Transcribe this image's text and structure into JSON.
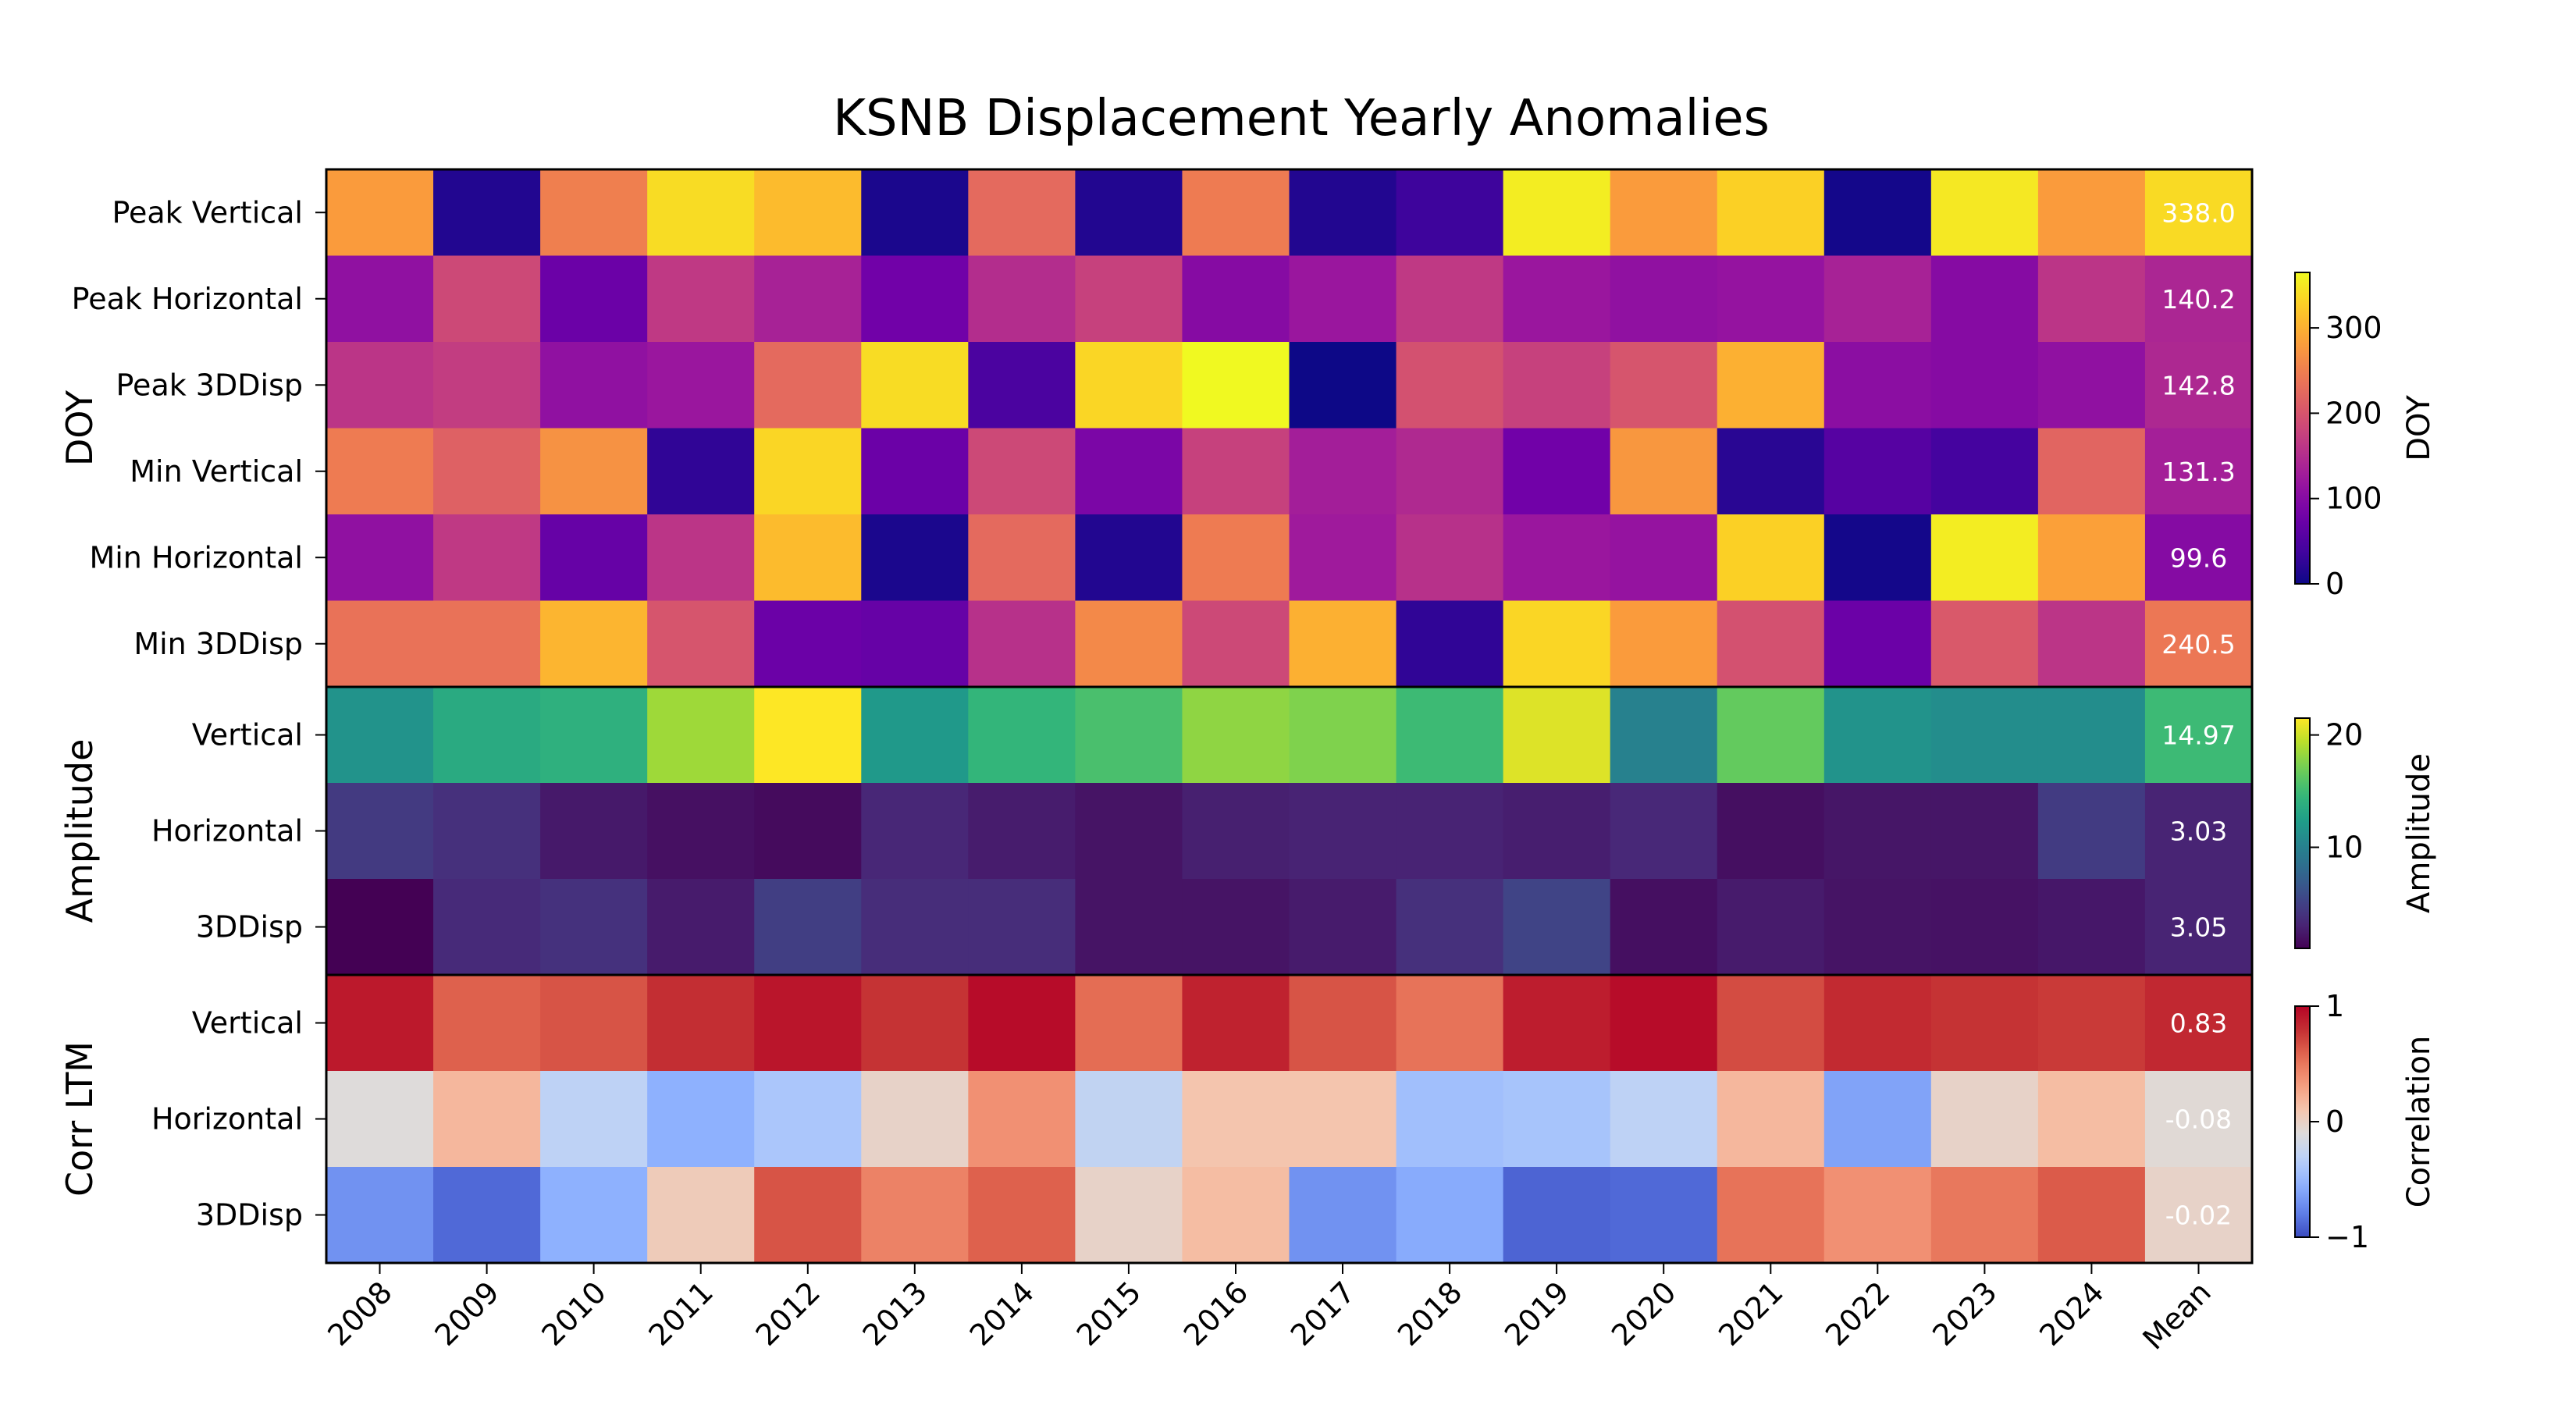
{
  "chart_data": {
    "type": "heatmap",
    "title": "KSNB Displacement Yearly Anomalies",
    "columns": [
      "2008",
      "2009",
      "2010",
      "2011",
      "2012",
      "2013",
      "2014",
      "2015",
      "2016",
      "2017",
      "2018",
      "2019",
      "2020",
      "2021",
      "2022",
      "2023",
      "2024",
      "Mean"
    ],
    "panels": [
      {
        "label": "DOY",
        "colormap": "plasma",
        "colorbar_label": "DOY",
        "range": [
          0,
          365
        ],
        "colorbar_ticks": [
          0,
          100,
          200,
          300
        ],
        "rows": [
          {
            "label": "Peak Vertical",
            "values": [
              280,
              15,
              250,
              340,
              310,
              10,
              225,
              15,
              245,
              15,
              35,
              355,
              280,
              330,
              5,
              350,
              280,
              338.0
            ],
            "mean_label": "338.0"
          },
          {
            "label": "Peak Horizontal",
            "values": [
              110,
              185,
              75,
              165,
              135,
              80,
              150,
              175,
              100,
              120,
              165,
              120,
              110,
              115,
              135,
              100,
              160,
              140.2
            ],
            "mean_label": "140.2"
          },
          {
            "label": "Peak 3DDisp",
            "values": [
              160,
              170,
              110,
              120,
              225,
              340,
              45,
              335,
              365,
              0,
              195,
              175,
              200,
              300,
              105,
              100,
              110,
              142.8
            ],
            "mean_label": "142.8"
          },
          {
            "label": "Min Vertical",
            "values": [
              245,
              215,
              270,
              25,
              335,
              75,
              185,
              90,
              175,
              130,
              145,
              80,
              275,
              20,
              55,
              40,
              220,
              131.3
            ],
            "mean_label": "131.3"
          },
          {
            "label": "Min Horizontal",
            "values": [
              110,
              165,
              70,
              160,
              310,
              10,
              225,
              15,
              245,
              125,
              155,
              120,
              115,
              330,
              5,
              355,
              285,
              99.6
            ],
            "mean_label": "99.6"
          },
          {
            "label": "Min 3DDisp",
            "values": [
              235,
              235,
              305,
              200,
              75,
              70,
              155,
              260,
              185,
              300,
              25,
              335,
              280,
              195,
              75,
              205,
              160,
              240.5
            ],
            "mean_label": "240.5"
          }
        ]
      },
      {
        "label": "Amplitude",
        "colormap": "viridis",
        "colorbar_label": "Amplitude",
        "range": [
          1,
          21.5
        ],
        "colorbar_ticks": [
          10,
          20
        ],
        "rows": [
          {
            "label": "Vertical",
            "values": [
              11.5,
              13.5,
              14.0,
              18.5,
              21.5,
              12.0,
              14.5,
              15.5,
              18.0,
              17.5,
              15.0,
              20.5,
              10.0,
              16.5,
              11.5,
              11.0,
              11.0,
              14.97
            ],
            "mean_label": "14.97"
          },
          {
            "label": "Horizontal",
            "values": [
              4.5,
              3.8,
              2.4,
              1.9,
              1.6,
              3.2,
              2.6,
              2.1,
              2.8,
              3.0,
              3.0,
              2.7,
              3.3,
              1.8,
              2.2,
              2.2,
              4.6,
              3.03
            ],
            "mean_label": "3.03"
          },
          {
            "label": "3DDisp",
            "values": [
              1.0,
              3.4,
              3.9,
              2.5,
              4.8,
              3.6,
              3.6,
              2.1,
              2.1,
              2.5,
              3.8,
              5.2,
              1.8,
              2.5,
              2.1,
              2.0,
              2.3,
              3.05
            ],
            "mean_label": "3.05"
          }
        ]
      },
      {
        "label": "Corr LTM",
        "colormap": "coolwarm",
        "colorbar_label": "Correlation",
        "range": [
          -1,
          1
        ],
        "colorbar_ticks": [
          -1,
          0,
          1
        ],
        "rows": [
          {
            "label": "Vertical",
            "values": [
              0.9,
              0.6,
              0.65,
              0.8,
              0.92,
              0.78,
              0.96,
              0.55,
              0.86,
              0.65,
              0.52,
              0.88,
              0.96,
              0.68,
              0.82,
              0.78,
              0.75,
              0.83
            ],
            "mean_label": "0.83"
          },
          {
            "label": "Horizontal",
            "values": [
              -0.1,
              0.18,
              -0.3,
              -0.55,
              -0.4,
              -0.02,
              0.38,
              -0.28,
              0.1,
              0.1,
              -0.45,
              -0.42,
              -0.3,
              0.18,
              -0.62,
              -0.02,
              0.15,
              -0.08
            ],
            "mean_label": "-0.08"
          },
          {
            "label": "3DDisp",
            "values": [
              -0.7,
              -0.88,
              -0.55,
              0.05,
              0.65,
              0.45,
              0.6,
              -0.02,
              0.15,
              -0.7,
              -0.58,
              -0.9,
              -0.88,
              0.52,
              0.38,
              0.5,
              0.62,
              -0.02
            ],
            "mean_label": "-0.02"
          }
        ]
      }
    ],
    "grid": false
  }
}
